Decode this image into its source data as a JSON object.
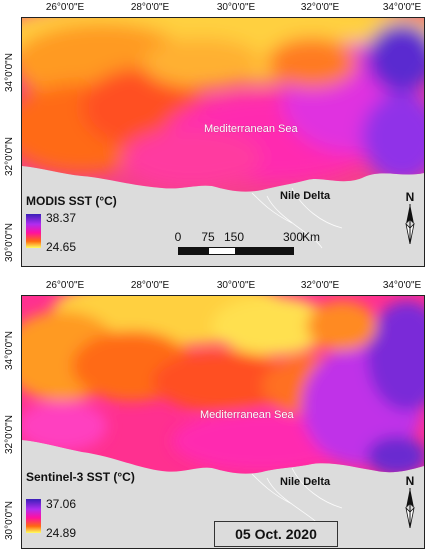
{
  "grid_top": [
    "26°0'0\"E",
    "28°0'0\"E",
    "30°0'0\"E",
    "32°0'0\"E",
    "34°0'0\"E"
  ],
  "grid_left": [
    "34°0'0\"N",
    "32°0'0\"N",
    "30°0'0\"N"
  ],
  "panels": [
    {
      "sea_label": "Mediterranean Sea",
      "delta_label": "Nile Delta",
      "legend_title": "MODIS SST (°C)",
      "legend_max": "38.37",
      "legend_min": "24.65",
      "north_label": "N",
      "scalebar": {
        "labels": [
          "0",
          "75",
          "150",
          "300"
        ],
        "unit": "Km"
      }
    },
    {
      "sea_label": "Mediterranean Sea",
      "delta_label": "Nile Delta",
      "legend_title": "Sentinel-3 SST (°C)",
      "legend_max": "37.06",
      "legend_min": "24.89",
      "north_label": "N",
      "date": "05 Oct. 2020"
    }
  ],
  "colors": {
    "land": "#dcdcdc",
    "sst_high": "#3a1fb8",
    "sst_mid_high": "#b02cf0",
    "sst_mid": "#ff10a0",
    "sst_mid_low": "#ff6a10",
    "sst_low": "#ffff60"
  }
}
